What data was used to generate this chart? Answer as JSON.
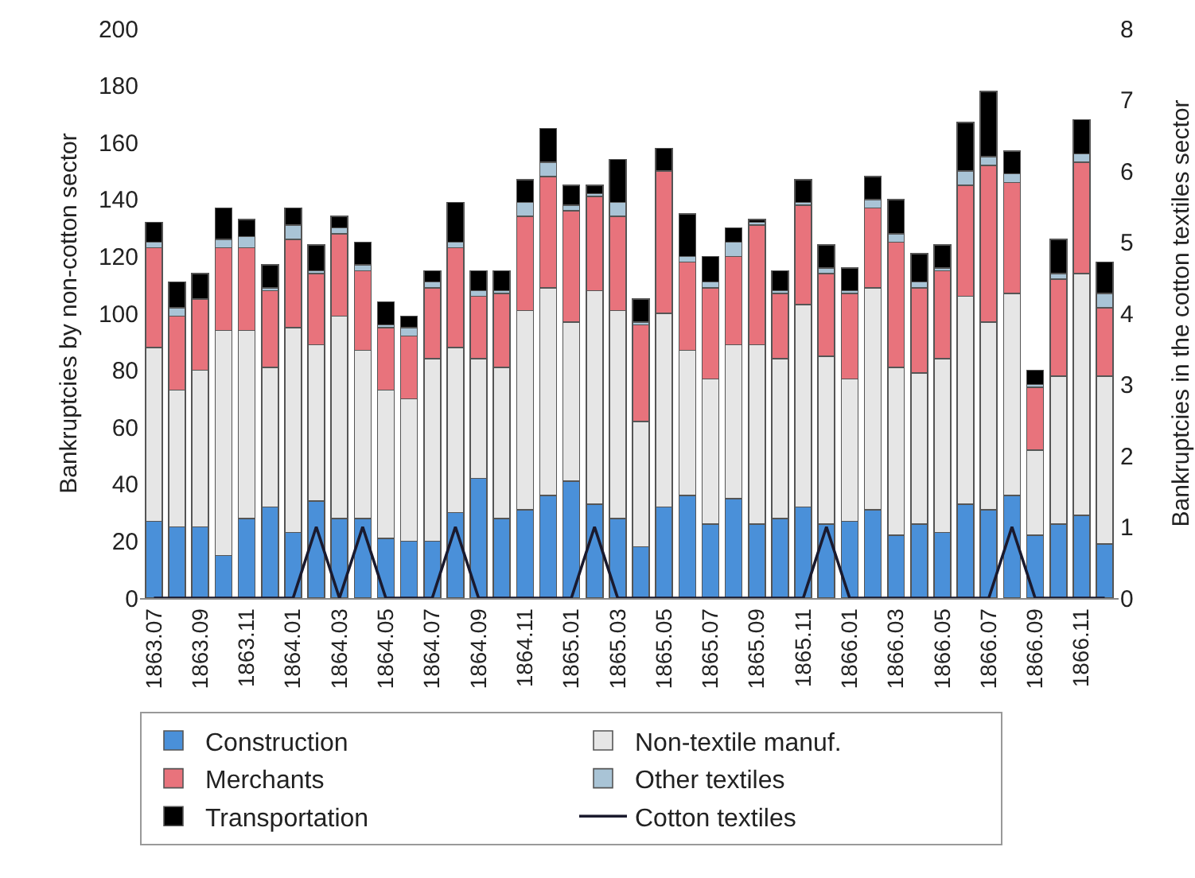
{
  "chart_data": {
    "type": "bar",
    "stacked": true,
    "ylabel": "Bankruptcies by non-cotton sector",
    "y2label": "Bankruptcies in the cotton textiles sector",
    "categories": [
      "1863.07",
      null,
      "1863.09",
      null,
      "1863.11",
      null,
      "1864.01",
      null,
      "1864.03",
      null,
      "1864.05",
      null,
      "1864.07",
      null,
      "1864.09",
      null,
      "1864.11",
      null,
      "1865.01",
      null,
      "1865.03",
      null,
      "1865.05",
      null,
      "1865.07",
      null,
      "1865.09",
      null,
      "1865.11",
      null,
      "1866.01",
      null,
      "1866.03",
      null,
      "1866.05",
      null,
      "1866.07",
      null,
      "1866.09",
      null,
      "1866.11",
      null
    ],
    "series": [
      {
        "name": "Construction",
        "color": "#4a90d9",
        "values": [
          27,
          25,
          25,
          15,
          28,
          32,
          23,
          34,
          28,
          28,
          21,
          20,
          20,
          30,
          42,
          28,
          31,
          36,
          41,
          33,
          28,
          18,
          32,
          36,
          26,
          35,
          26,
          28,
          32,
          26,
          27,
          31,
          22,
          26,
          23,
          33,
          31,
          36,
          22,
          26,
          29,
          19
        ]
      },
      {
        "name": "Non-textile manuf.",
        "color": "#e6e6e6",
        "values": [
          61,
          48,
          55,
          79,
          66,
          49,
          72,
          55,
          71,
          59,
          52,
          50,
          64,
          58,
          42,
          53,
          70,
          73,
          56,
          75,
          73,
          44,
          68,
          51,
          51,
          54,
          63,
          56,
          71,
          59,
          50,
          78,
          59,
          53,
          61,
          73,
          66,
          71,
          30,
          52,
          85,
          59
        ]
      },
      {
        "name": "Merchants",
        "color": "#e8737c",
        "values": [
          35,
          26,
          25,
          29,
          29,
          27,
          31,
          25,
          29,
          28,
          22,
          22,
          25,
          35,
          22,
          26,
          33,
          39,
          39,
          33,
          33,
          34,
          50,
          31,
          32,
          31,
          42,
          23,
          35,
          29,
          30,
          28,
          44,
          30,
          31,
          39,
          55,
          39,
          22,
          34,
          39,
          24
        ]
      },
      {
        "name": "Other textiles",
        "color": "#a9c4d6",
        "values": [
          2,
          3,
          0,
          3,
          4,
          1,
          5,
          1,
          2,
          2,
          1,
          3,
          2,
          2,
          2,
          1,
          5,
          5,
          2,
          1,
          5,
          1,
          0,
          2,
          2,
          5,
          1,
          1,
          1,
          2,
          1,
          3,
          3,
          2,
          1,
          5,
          3,
          3,
          1,
          2,
          3,
          5
        ]
      },
      {
        "name": "Transportation",
        "color": "#000000",
        "values": [
          7,
          9,
          9,
          11,
          6,
          8,
          6,
          9,
          4,
          8,
          8,
          4,
          4,
          14,
          7,
          7,
          8,
          12,
          7,
          3,
          15,
          8,
          8,
          15,
          9,
          5,
          1,
          7,
          8,
          8,
          8,
          8,
          12,
          10,
          8,
          17,
          23,
          8,
          5,
          12,
          12,
          11
        ]
      },
      {
        "name": "Cotton textiles",
        "type": "line",
        "axis": "y2",
        "color": "#1a1a2e",
        "values": [
          0,
          0,
          0,
          0,
          0,
          0,
          0,
          1,
          0,
          1,
          0,
          0,
          0,
          1,
          0,
          0,
          0,
          0,
          0,
          1,
          0,
          0,
          0,
          0,
          0,
          0,
          0,
          0,
          0,
          1,
          0,
          0,
          0,
          0,
          0,
          0,
          0,
          1,
          0,
          0,
          0,
          0
        ]
      }
    ],
    "ylim": [
      0,
      200
    ],
    "yticks": [
      0,
      20,
      40,
      60,
      80,
      100,
      120,
      140,
      160,
      180,
      200
    ],
    "y2lim": [
      0,
      8
    ],
    "y2ticks": [
      0,
      1,
      2,
      3,
      4,
      5,
      6,
      7,
      8
    ],
    "marker": "none",
    "line_style": "solid",
    "grid": false,
    "legend": "bottom"
  }
}
